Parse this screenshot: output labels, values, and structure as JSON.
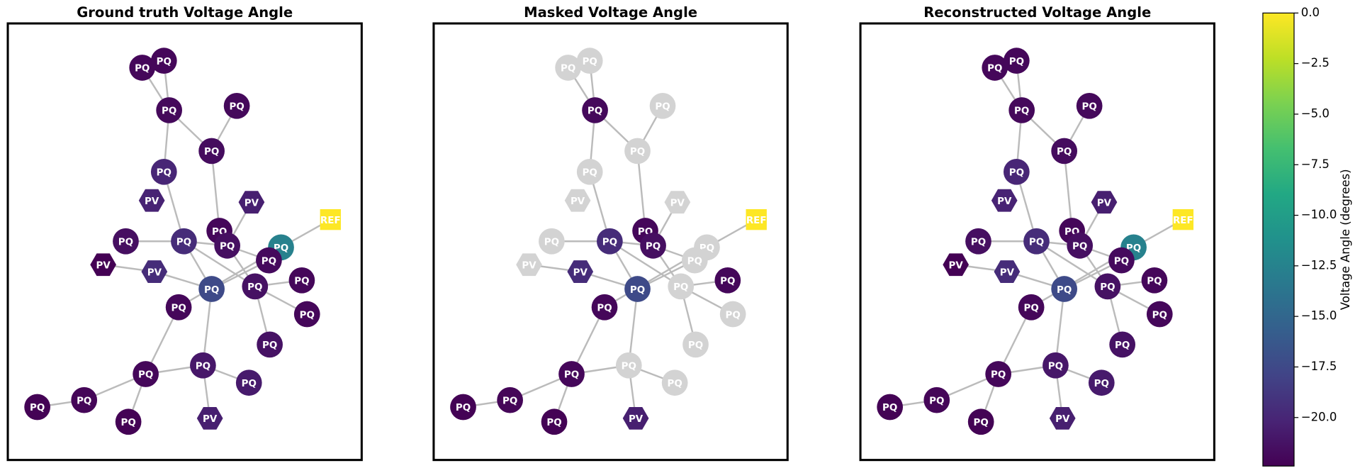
{
  "chart_data": {
    "type": "network",
    "node_labels": [
      "PQ",
      "PQ",
      "PQ",
      "PQ",
      "PQ",
      "PQ",
      "PV",
      "PV",
      "REF",
      "PQ",
      "PQ",
      "PQ",
      "PQ",
      "PQ",
      "PV",
      "PV",
      "PQ",
      "PQ",
      "PQ",
      "PQ",
      "PQ",
      "PQ",
      "PQ",
      "PQ",
      "PQ",
      "PQ",
      "PQ",
      "PQ",
      "PQ",
      "PV"
    ],
    "panels": [
      {
        "title": "Ground truth Voltage Angle",
        "values": [
          -22.0,
          -22.0,
          -21.9,
          -21.9,
          -21.7,
          -20.0,
          -20.2,
          -20.5,
          0,
          -21.5,
          -19.6,
          -22.0,
          -21.5,
          -12.6,
          -22.4,
          -19.6,
          -17.4,
          -21.8,
          -21.4,
          -22.0,
          -22.0,
          -22.0,
          -21.3,
          -21.0,
          -22.0,
          -20.8,
          -22.1,
          -22.3,
          -22.3,
          -20.5
        ]
      },
      {
        "title": "Masked Voltage Angle",
        "values": [
          null,
          null,
          -21.9,
          null,
          null,
          null,
          null,
          null,
          0,
          null,
          -19.6,
          -22.0,
          -21.5,
          null,
          null,
          -19.6,
          -17.4,
          null,
          null,
          -22.0,
          -22.0,
          null,
          null,
          null,
          -22.0,
          null,
          -22.1,
          -22.3,
          -22.3,
          -20.5
        ]
      },
      {
        "title": "Reconstructed Voltage Angle",
        "values": [
          -22.0,
          -22.0,
          -21.9,
          -21.9,
          -21.7,
          -20.0,
          -20.2,
          -20.5,
          0,
          -21.5,
          -19.6,
          -22.0,
          -21.5,
          -12.6,
          -22.4,
          -19.6,
          -17.4,
          -21.8,
          -21.4,
          -22.0,
          -22.0,
          -22.0,
          -21.3,
          -21.0,
          -22.0,
          -20.8,
          -22.1,
          -22.3,
          -22.3,
          -20.5
        ]
      }
    ],
    "colorbar": {
      "label": "Voltage Angle (degrees)",
      "colormap": "viridis",
      "lim": [
        -22.4,
        0
      ],
      "ticks": [
        {
          "value": 0,
          "label": "0.0"
        },
        {
          "value": -2.5,
          "label": "−2.5"
        },
        {
          "value": -5,
          "label": "−5.0"
        },
        {
          "value": -7.5,
          "label": "−7.5"
        },
        {
          "value": -10,
          "label": "−10.0"
        },
        {
          "value": -12.5,
          "label": "−12.5"
        },
        {
          "value": -15,
          "label": "−15.0"
        },
        {
          "value": -17.5,
          "label": "−17.5"
        },
        {
          "value": -20,
          "label": "−20.0"
        }
      ]
    },
    "mask_color": "#d3d3d3",
    "edge_color": "#bbbbbb"
  }
}
